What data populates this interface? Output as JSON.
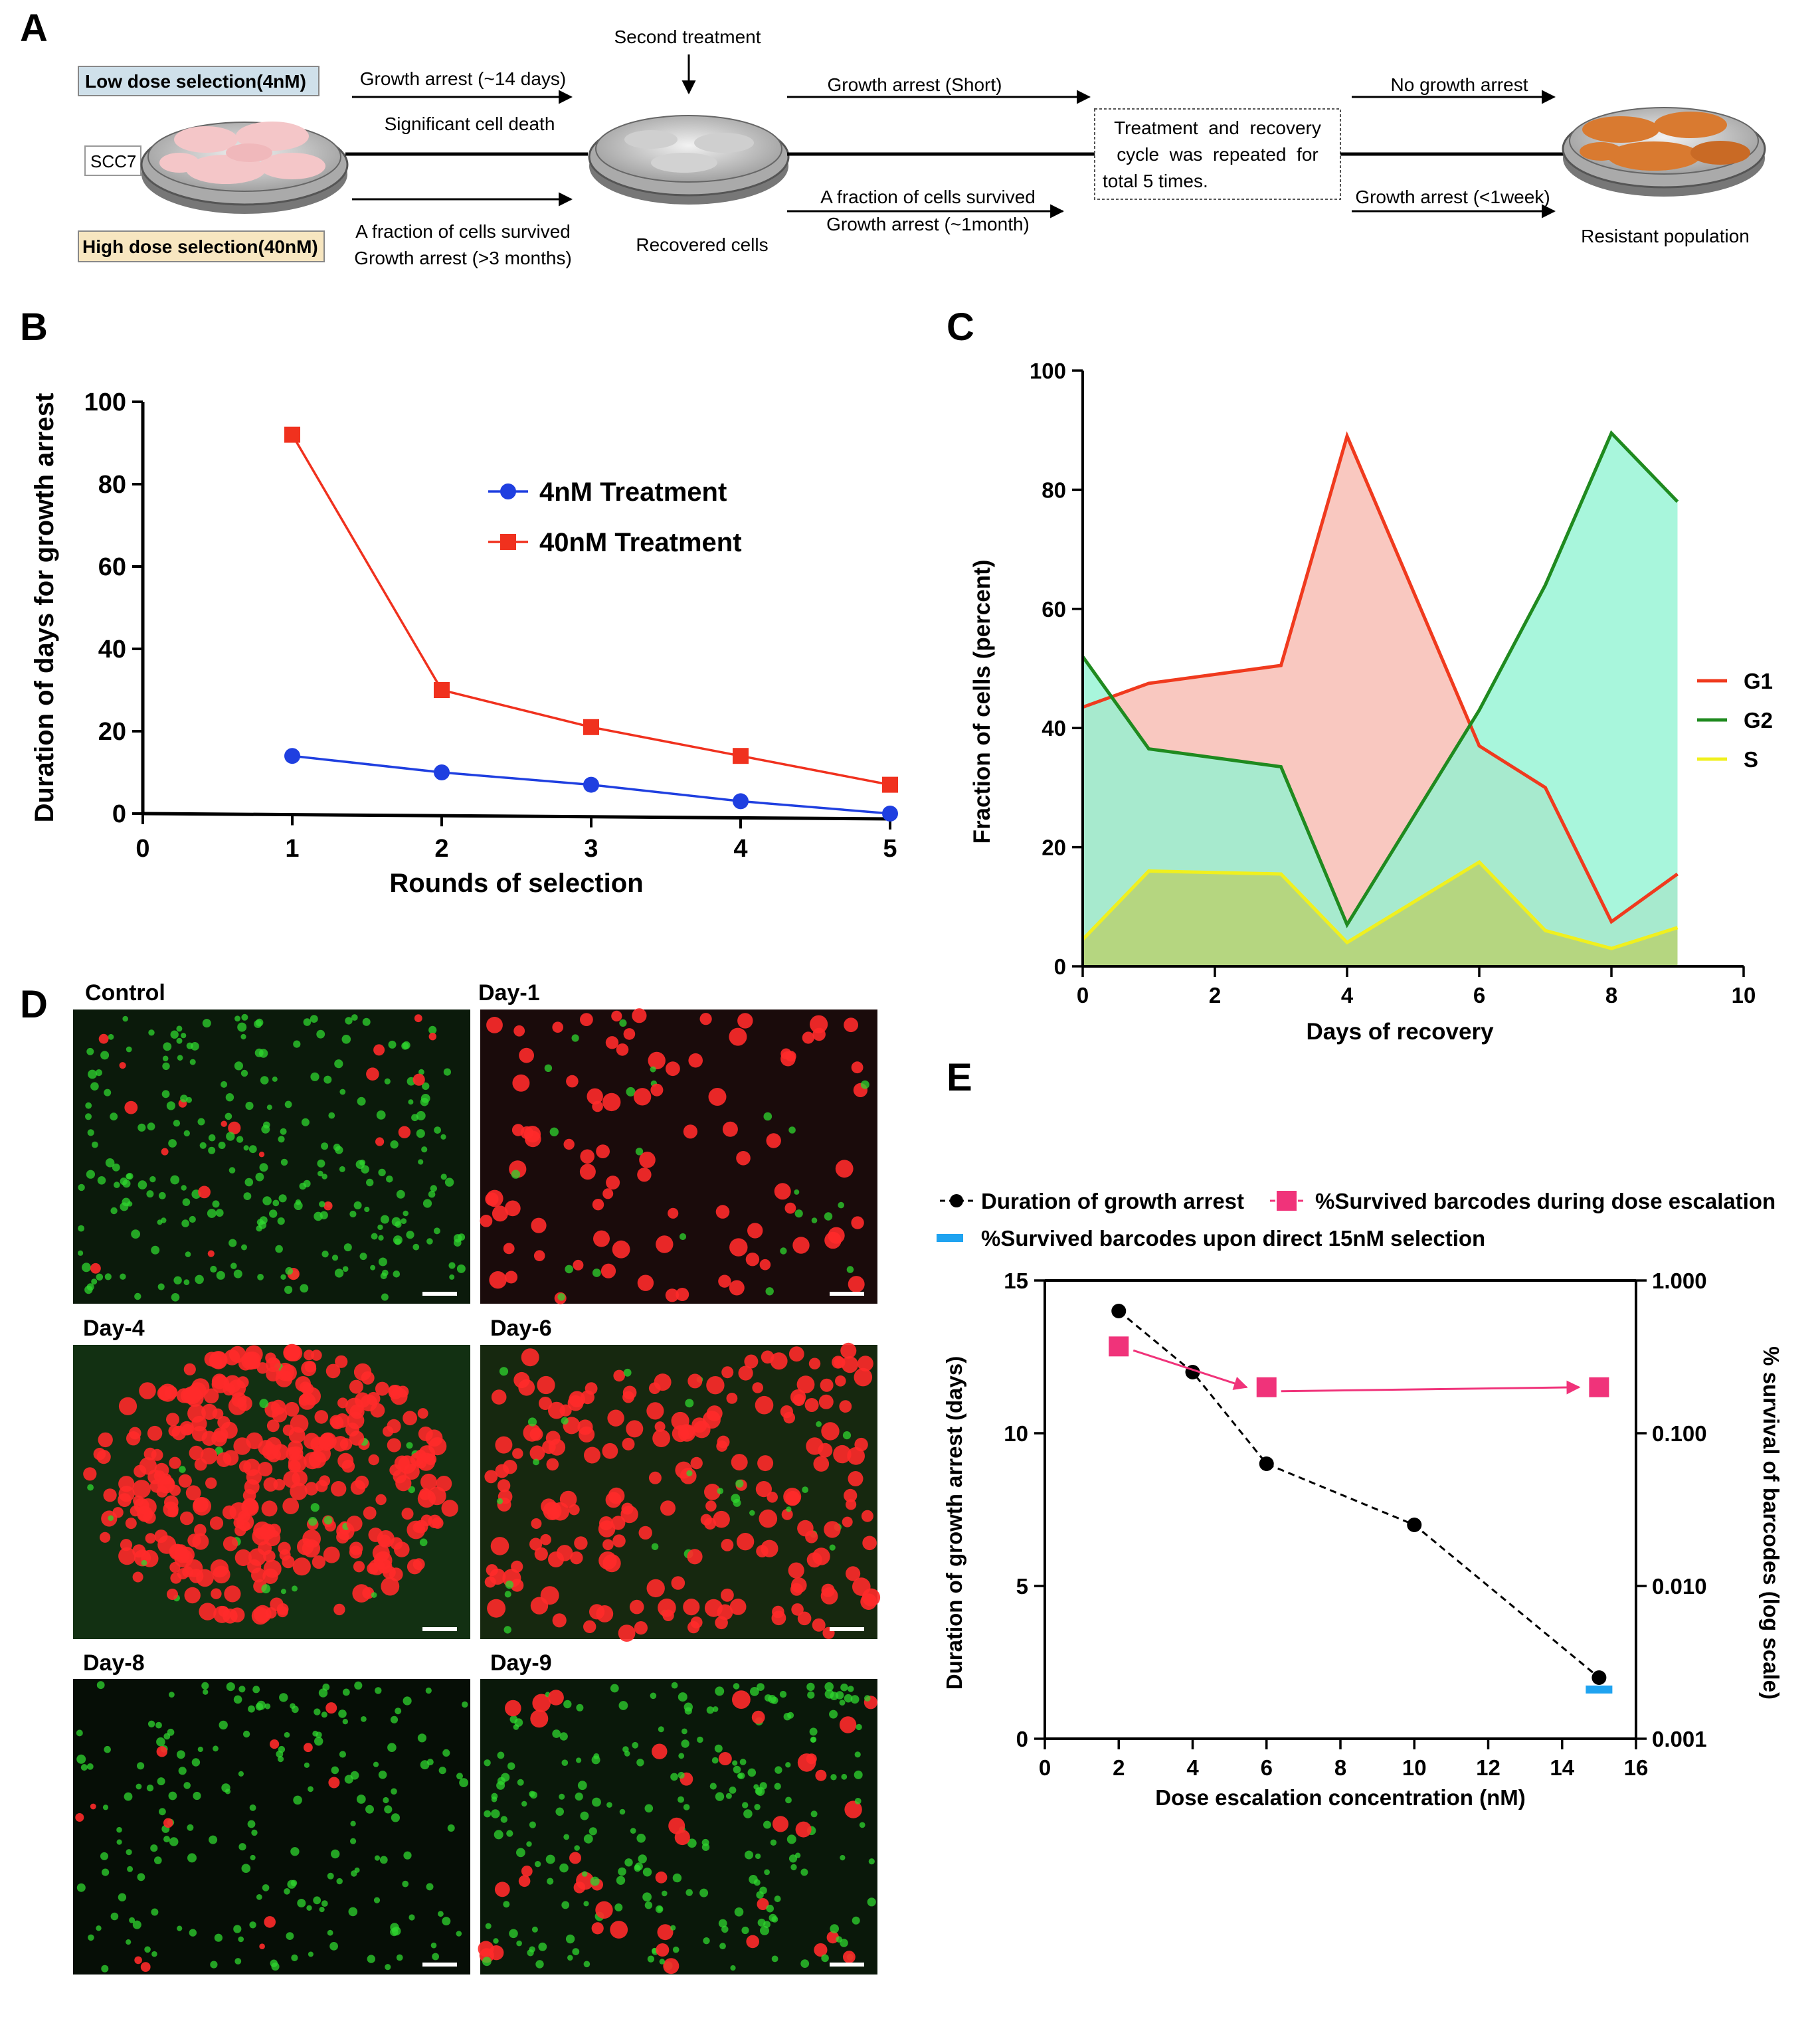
{
  "panels": {
    "a": "A",
    "b": "B",
    "c": "C",
    "d": "D",
    "e": "E"
  },
  "panel_a": {
    "low_dose": "Low dose selection(4nM)",
    "high_dose": "High dose selection(40nM)",
    "cell_line": "SCC7",
    "stage1_top_1": "Growth arrest (~14 days)",
    "stage1_top_2": "Significant cell death",
    "stage1_bottom_1": "A fraction of cells survived",
    "stage1_bottom_2": "Growth arrest (>3 months)",
    "second_treatment": "Second treatment",
    "recovered_cells": "Recovered cells",
    "stage2_top": "Growth arrest (Short)",
    "stage2_bottom_1": "A fraction of cells survived",
    "stage2_bottom_2": "Growth arrest (~1month)",
    "box_line1": "Treatment  and  recovery",
    "box_line2": "cycle  was  repeated  for",
    "box_line3": "total 5 times.",
    "stage3_top": "No growth arrest",
    "stage3_bottom": "Growth arrest (<1week)",
    "resistant": "Resistant population",
    "colors": {
      "low_dose_bg": "#5aa7c8",
      "high_dose_bg": "#f1d79a",
      "normal_cells": "#f4c6c8",
      "resistant_cells": "#d97a30"
    }
  },
  "chart_data": [
    {
      "panel": "B",
      "type": "line",
      "xlabel": "Rounds of selection",
      "ylabel": "Duration of days for growth arrest",
      "xlim": [
        0,
        5
      ],
      "ylim": [
        0,
        100
      ],
      "xticks": [
        0,
        1,
        2,
        3,
        4,
        5
      ],
      "yticks": [
        0,
        20,
        40,
        60,
        80,
        100
      ],
      "legend_position": "top-right",
      "series": [
        {
          "name": "4nM Treatment",
          "color": "#1f3fe0",
          "marker": "circle",
          "x": [
            1,
            2,
            3,
            4,
            5
          ],
          "values": [
            14,
            10,
            7,
            3,
            0
          ]
        },
        {
          "name": "40nM Treatment",
          "color": "#f0311e",
          "marker": "square",
          "x": [
            1,
            2,
            3,
            4,
            5
          ],
          "values": [
            92,
            30,
            21,
            14,
            7
          ]
        }
      ]
    },
    {
      "panel": "C",
      "type": "area",
      "xlabel": "Days of recovery",
      "ylabel": "Fraction of cells (percent)",
      "xlim": [
        0,
        10
      ],
      "ylim": [
        0,
        100
      ],
      "xticks": [
        0,
        2,
        4,
        6,
        8,
        10
      ],
      "yticks": [
        0,
        20,
        40,
        60,
        80,
        100
      ],
      "legend_position": "right",
      "x": [
        0,
        1,
        3,
        4,
        6,
        7,
        8,
        9
      ],
      "series": [
        {
          "name": "G1",
          "color": "#f03a1e",
          "fill": "#f7b8ae",
          "values": [
            43.5,
            47.5,
            50.5,
            89,
            37,
            30,
            7.5,
            15.5
          ]
        },
        {
          "name": "G2",
          "color": "#1f8a1f",
          "fill": "#8ff3d2",
          "values": [
            52,
            36.5,
            33.5,
            7,
            43,
            64,
            89.5,
            78
          ]
        },
        {
          "name": "S",
          "color": "#f0f01e",
          "fill": "#b9cf6a",
          "values": [
            4.5,
            16,
            15.5,
            4,
            17.5,
            6,
            3,
            6.5
          ]
        }
      ]
    },
    {
      "panel": "E",
      "type": "scatter",
      "xlabel": "Dose escalation concentration (nM)",
      "ylabel": "Duration of growth arrest (days)",
      "y2label": "% survival of barcodes (log scale)",
      "xlim": [
        0,
        16
      ],
      "ylim": [
        0,
        15
      ],
      "y2lim": [
        0.001,
        1.0
      ],
      "y2scale": "log",
      "xticks": [
        0,
        2,
        4,
        6,
        8,
        10,
        12,
        14,
        16
      ],
      "yticks": [
        0,
        5,
        10,
        15
      ],
      "y2ticks": [
        "0.001",
        "0.010",
        "0.100",
        "1.000"
      ],
      "legend_position": "top",
      "series": [
        {
          "name": "Duration of growth arrest",
          "color": "#000000",
          "marker": "circle",
          "line": "dashed",
          "axis": "left",
          "x": [
            2,
            4,
            6,
            10,
            15
          ],
          "values": [
            14,
            12,
            9,
            7,
            2
          ]
        },
        {
          "name": "%Survived barcodes during dose escalation",
          "color": "#f0337a",
          "marker": "square",
          "axis": "right",
          "x": [
            2,
            6,
            15
          ],
          "values": [
            0.37,
            0.2,
            0.2
          ]
        },
        {
          "name": "%Survived barcodes upon direct 15nM selection",
          "color": "#1fa3f0",
          "marker": "dash",
          "axis": "right",
          "x": [
            15
          ],
          "values": [
            0.0021
          ]
        }
      ]
    }
  ],
  "panel_d": {
    "images": [
      {
        "label": "Control",
        "red": 0.08,
        "green": 0.92
      },
      {
        "label": "Day-1",
        "red": 0.82,
        "green": 0.18
      },
      {
        "label": "Day-4",
        "red": 0.95,
        "green": 0.05
      },
      {
        "label": "Day-6",
        "red": 0.88,
        "green": 0.12
      },
      {
        "label": "Day-8",
        "red": 0.04,
        "green": 0.96
      },
      {
        "label": "Day-9",
        "red": 0.15,
        "green": 0.85
      }
    ],
    "colors": {
      "red_cell": "#ff2a2a",
      "green_cell": "#2fd52f"
    }
  }
}
